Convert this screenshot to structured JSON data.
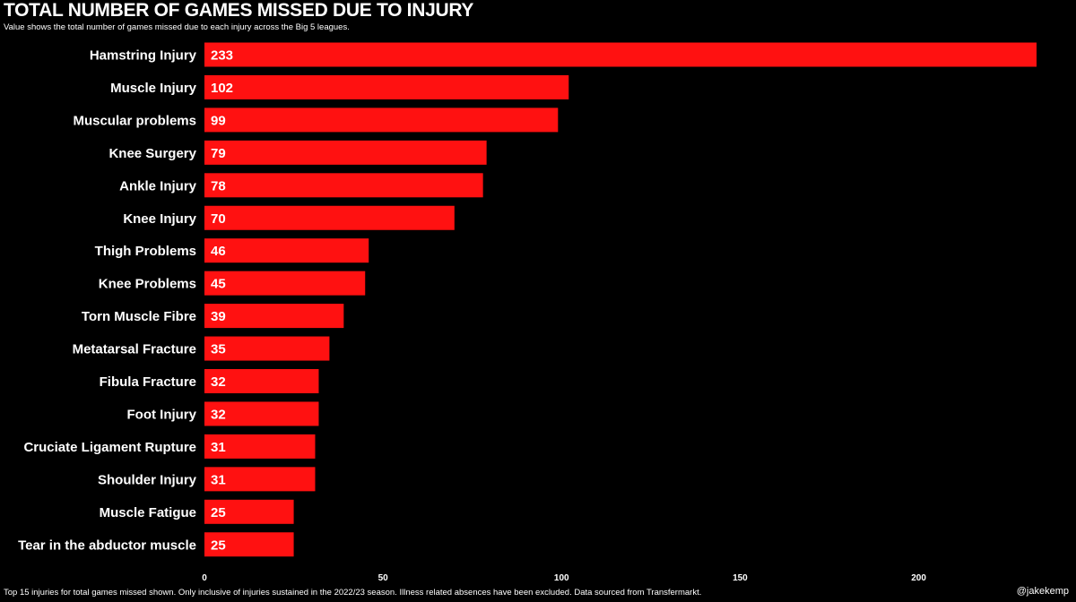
{
  "chart_data": {
    "type": "bar",
    "orientation": "horizontal",
    "title": "TOTAL NUMBER OF GAMES MISSED DUE TO INJURY",
    "subtitle": "Value shows the total number of games missed due to each injury across the Big 5 leagues.",
    "categories": [
      "Hamstring Injury",
      "Muscle Injury",
      "Muscular problems",
      "Knee Surgery",
      "Ankle Injury",
      "Knee Injury",
      "Thigh Problems",
      "Knee Problems",
      "Torn Muscle Fibre",
      "Metatarsal Fracture",
      "Fibula Fracture",
      "Foot Injury",
      "Cruciate Ligament Rupture",
      "Shoulder Injury",
      "Muscle Fatigue",
      "Tear in the abductor muscle"
    ],
    "values": [
      233,
      102,
      99,
      79,
      78,
      70,
      46,
      45,
      39,
      35,
      32,
      32,
      31,
      31,
      25,
      25
    ],
    "xticks": [
      0,
      50,
      100,
      150,
      200
    ],
    "xlim": [
      0,
      233
    ],
    "xlabel": "",
    "ylabel": "",
    "grid": false,
    "bar_color": "#ff1111",
    "background_color": "#000000"
  },
  "footer": {
    "note": "Top 15 injuries for total games missed shown. Only inclusive of injuries sustained in the 2022/23 season. Illness related absences have been excluded. Data sourced from Transfermarkt.",
    "credit": "@jakekemp"
  }
}
